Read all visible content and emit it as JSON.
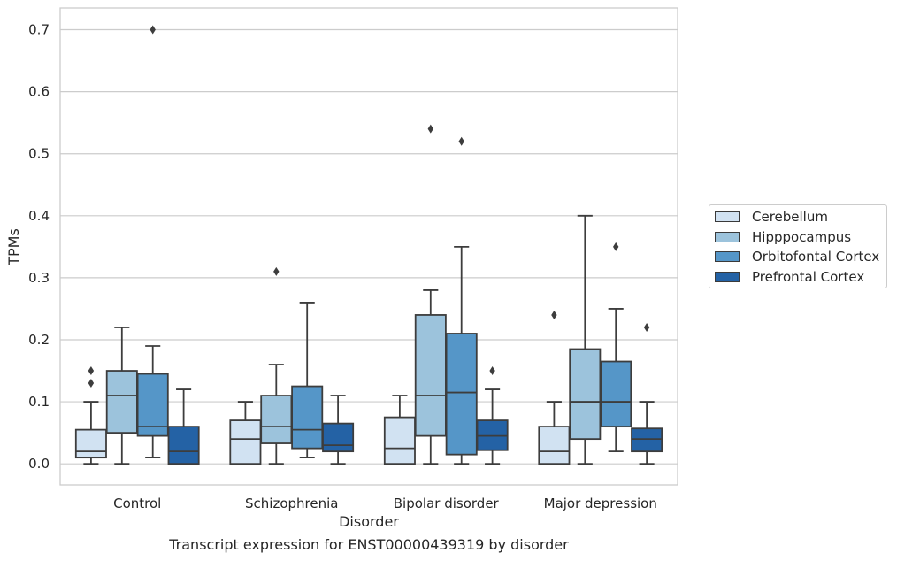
{
  "caption": "Transcript expression for ENST00000439319 by disorder",
  "chart_data": {
    "type": "box",
    "xlabel": "Disorder",
    "ylabel": "TPMs",
    "ylim": [
      -0.034,
      0.735
    ],
    "yticks": [
      0.0,
      0.1,
      0.2,
      0.3,
      0.4,
      0.5,
      0.6,
      0.7
    ],
    "ytick_labels": [
      "0.0",
      "0.1",
      "0.2",
      "0.3",
      "0.4",
      "0.5",
      "0.6",
      "0.7"
    ],
    "grid": "y",
    "legend_position": "right-outside",
    "categories": [
      "Control",
      "Schizophrenia",
      "Bipolar disorder",
      "Major depression"
    ],
    "series": [
      {
        "name": "Cerebellum",
        "color": "#d1e2f2",
        "boxes": [
          {
            "whislo": 0.0,
            "q1": 0.01,
            "med": 0.02,
            "q3": 0.055,
            "whishi": 0.1,
            "fliers": [
              0.13,
              0.15
            ]
          },
          {
            "whislo": 0.0,
            "q1": 0.0,
            "med": 0.04,
            "q3": 0.07,
            "whishi": 0.1,
            "fliers": []
          },
          {
            "whislo": 0.0,
            "q1": 0.0,
            "med": 0.025,
            "q3": 0.075,
            "whishi": 0.11,
            "fliers": []
          },
          {
            "whislo": 0.0,
            "q1": 0.0,
            "med": 0.02,
            "q3": 0.06,
            "whishi": 0.1,
            "fliers": [
              0.24
            ]
          }
        ]
      },
      {
        "name": "Hipppocampus",
        "color": "#9cc3dc",
        "boxes": [
          {
            "whislo": 0.0,
            "q1": 0.05,
            "med": 0.11,
            "q3": 0.15,
            "whishi": 0.22,
            "fliers": []
          },
          {
            "whislo": 0.0,
            "q1": 0.033,
            "med": 0.06,
            "q3": 0.11,
            "whishi": 0.16,
            "fliers": [
              0.31
            ]
          },
          {
            "whislo": 0.0,
            "q1": 0.045,
            "med": 0.11,
            "q3": 0.24,
            "whishi": 0.28,
            "fliers": [
              0.54
            ]
          },
          {
            "whislo": 0.0,
            "q1": 0.04,
            "med": 0.1,
            "q3": 0.185,
            "whishi": 0.4,
            "fliers": []
          }
        ]
      },
      {
        "name": "Orbitofontal Cortex",
        "color": "#5596c8",
        "boxes": [
          {
            "whislo": 0.01,
            "q1": 0.045,
            "med": 0.06,
            "q3": 0.145,
            "whishi": 0.19,
            "fliers": [
              0.7
            ]
          },
          {
            "whislo": 0.01,
            "q1": 0.025,
            "med": 0.055,
            "q3": 0.125,
            "whishi": 0.26,
            "fliers": []
          },
          {
            "whislo": 0.0,
            "q1": 0.015,
            "med": 0.115,
            "q3": 0.21,
            "whishi": 0.35,
            "fliers": [
              0.52
            ]
          },
          {
            "whislo": 0.02,
            "q1": 0.06,
            "med": 0.1,
            "q3": 0.165,
            "whishi": 0.25,
            "fliers": [
              0.35
            ]
          }
        ]
      },
      {
        "name": "Prefrontal Cortex",
        "color": "#2462a5",
        "boxes": [
          {
            "whislo": 0.0,
            "q1": 0.0,
            "med": 0.02,
            "q3": 0.06,
            "whishi": 0.12,
            "fliers": []
          },
          {
            "whislo": 0.0,
            "q1": 0.02,
            "med": 0.03,
            "q3": 0.065,
            "whishi": 0.11,
            "fliers": []
          },
          {
            "whislo": 0.0,
            "q1": 0.022,
            "med": 0.045,
            "q3": 0.07,
            "whishi": 0.12,
            "fliers": [
              0.15
            ]
          },
          {
            "whislo": 0.0,
            "q1": 0.02,
            "med": 0.04,
            "q3": 0.057,
            "whishi": 0.1,
            "fliers": [
              0.22
            ]
          }
        ]
      }
    ]
  }
}
